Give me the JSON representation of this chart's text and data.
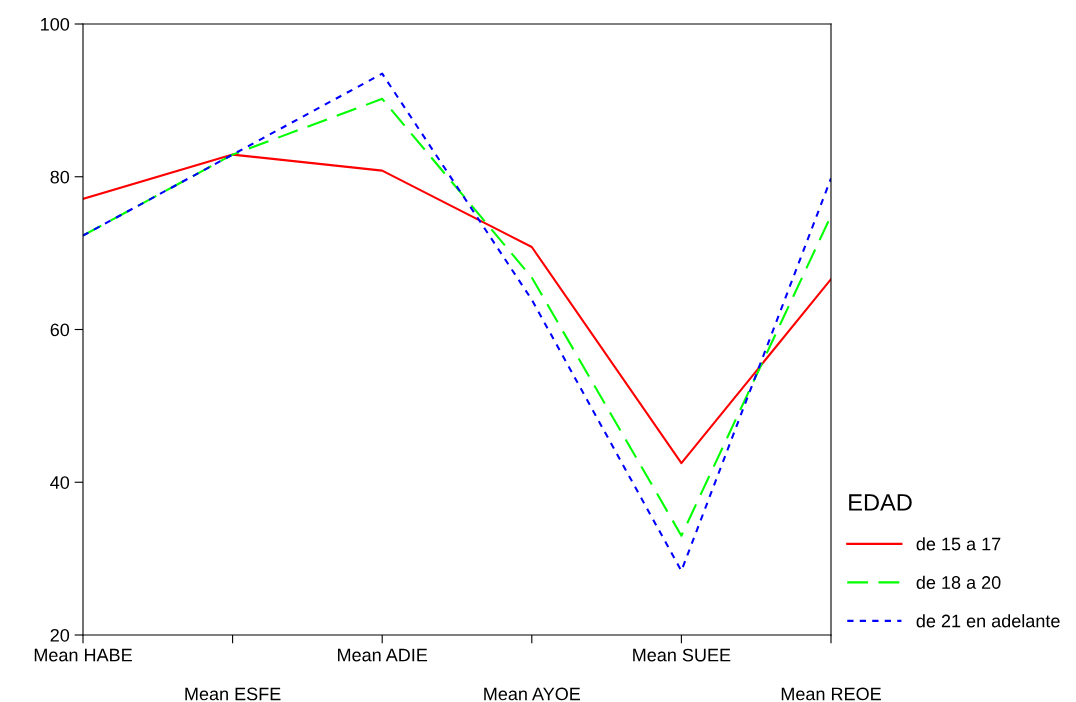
{
  "chart_data": {
    "type": "line",
    "categories": [
      "Mean HABE",
      "Mean ESFE",
      "Mean ADIE",
      "Mean AYOE",
      "Mean SUEE",
      "Mean REOE"
    ],
    "ylim": [
      20,
      100
    ],
    "yticks": [
      20,
      40,
      60,
      80,
      100
    ],
    "grid": false,
    "legend": "right",
    "legend_title": "EDAD",
    "marker": "none",
    "series": [
      {
        "name": "de 15 a 17",
        "color": "#ff0000",
        "line_style": "solid",
        "values": [
          77.1,
          82.9,
          80.8,
          70.8,
          42.5,
          66.6
        ]
      },
      {
        "name": "de 18 a 20",
        "color": "#00ff00",
        "line_style": "dashed",
        "values": [
          72.3,
          82.9,
          90.2,
          66.8,
          33.0,
          74.9
        ]
      },
      {
        "name": "de 21 en adelante",
        "color": "#0000ff",
        "line_style": "dotted",
        "values": [
          72.3,
          82.9,
          93.5,
          63.9,
          28.4,
          79.8
        ]
      }
    ]
  }
}
